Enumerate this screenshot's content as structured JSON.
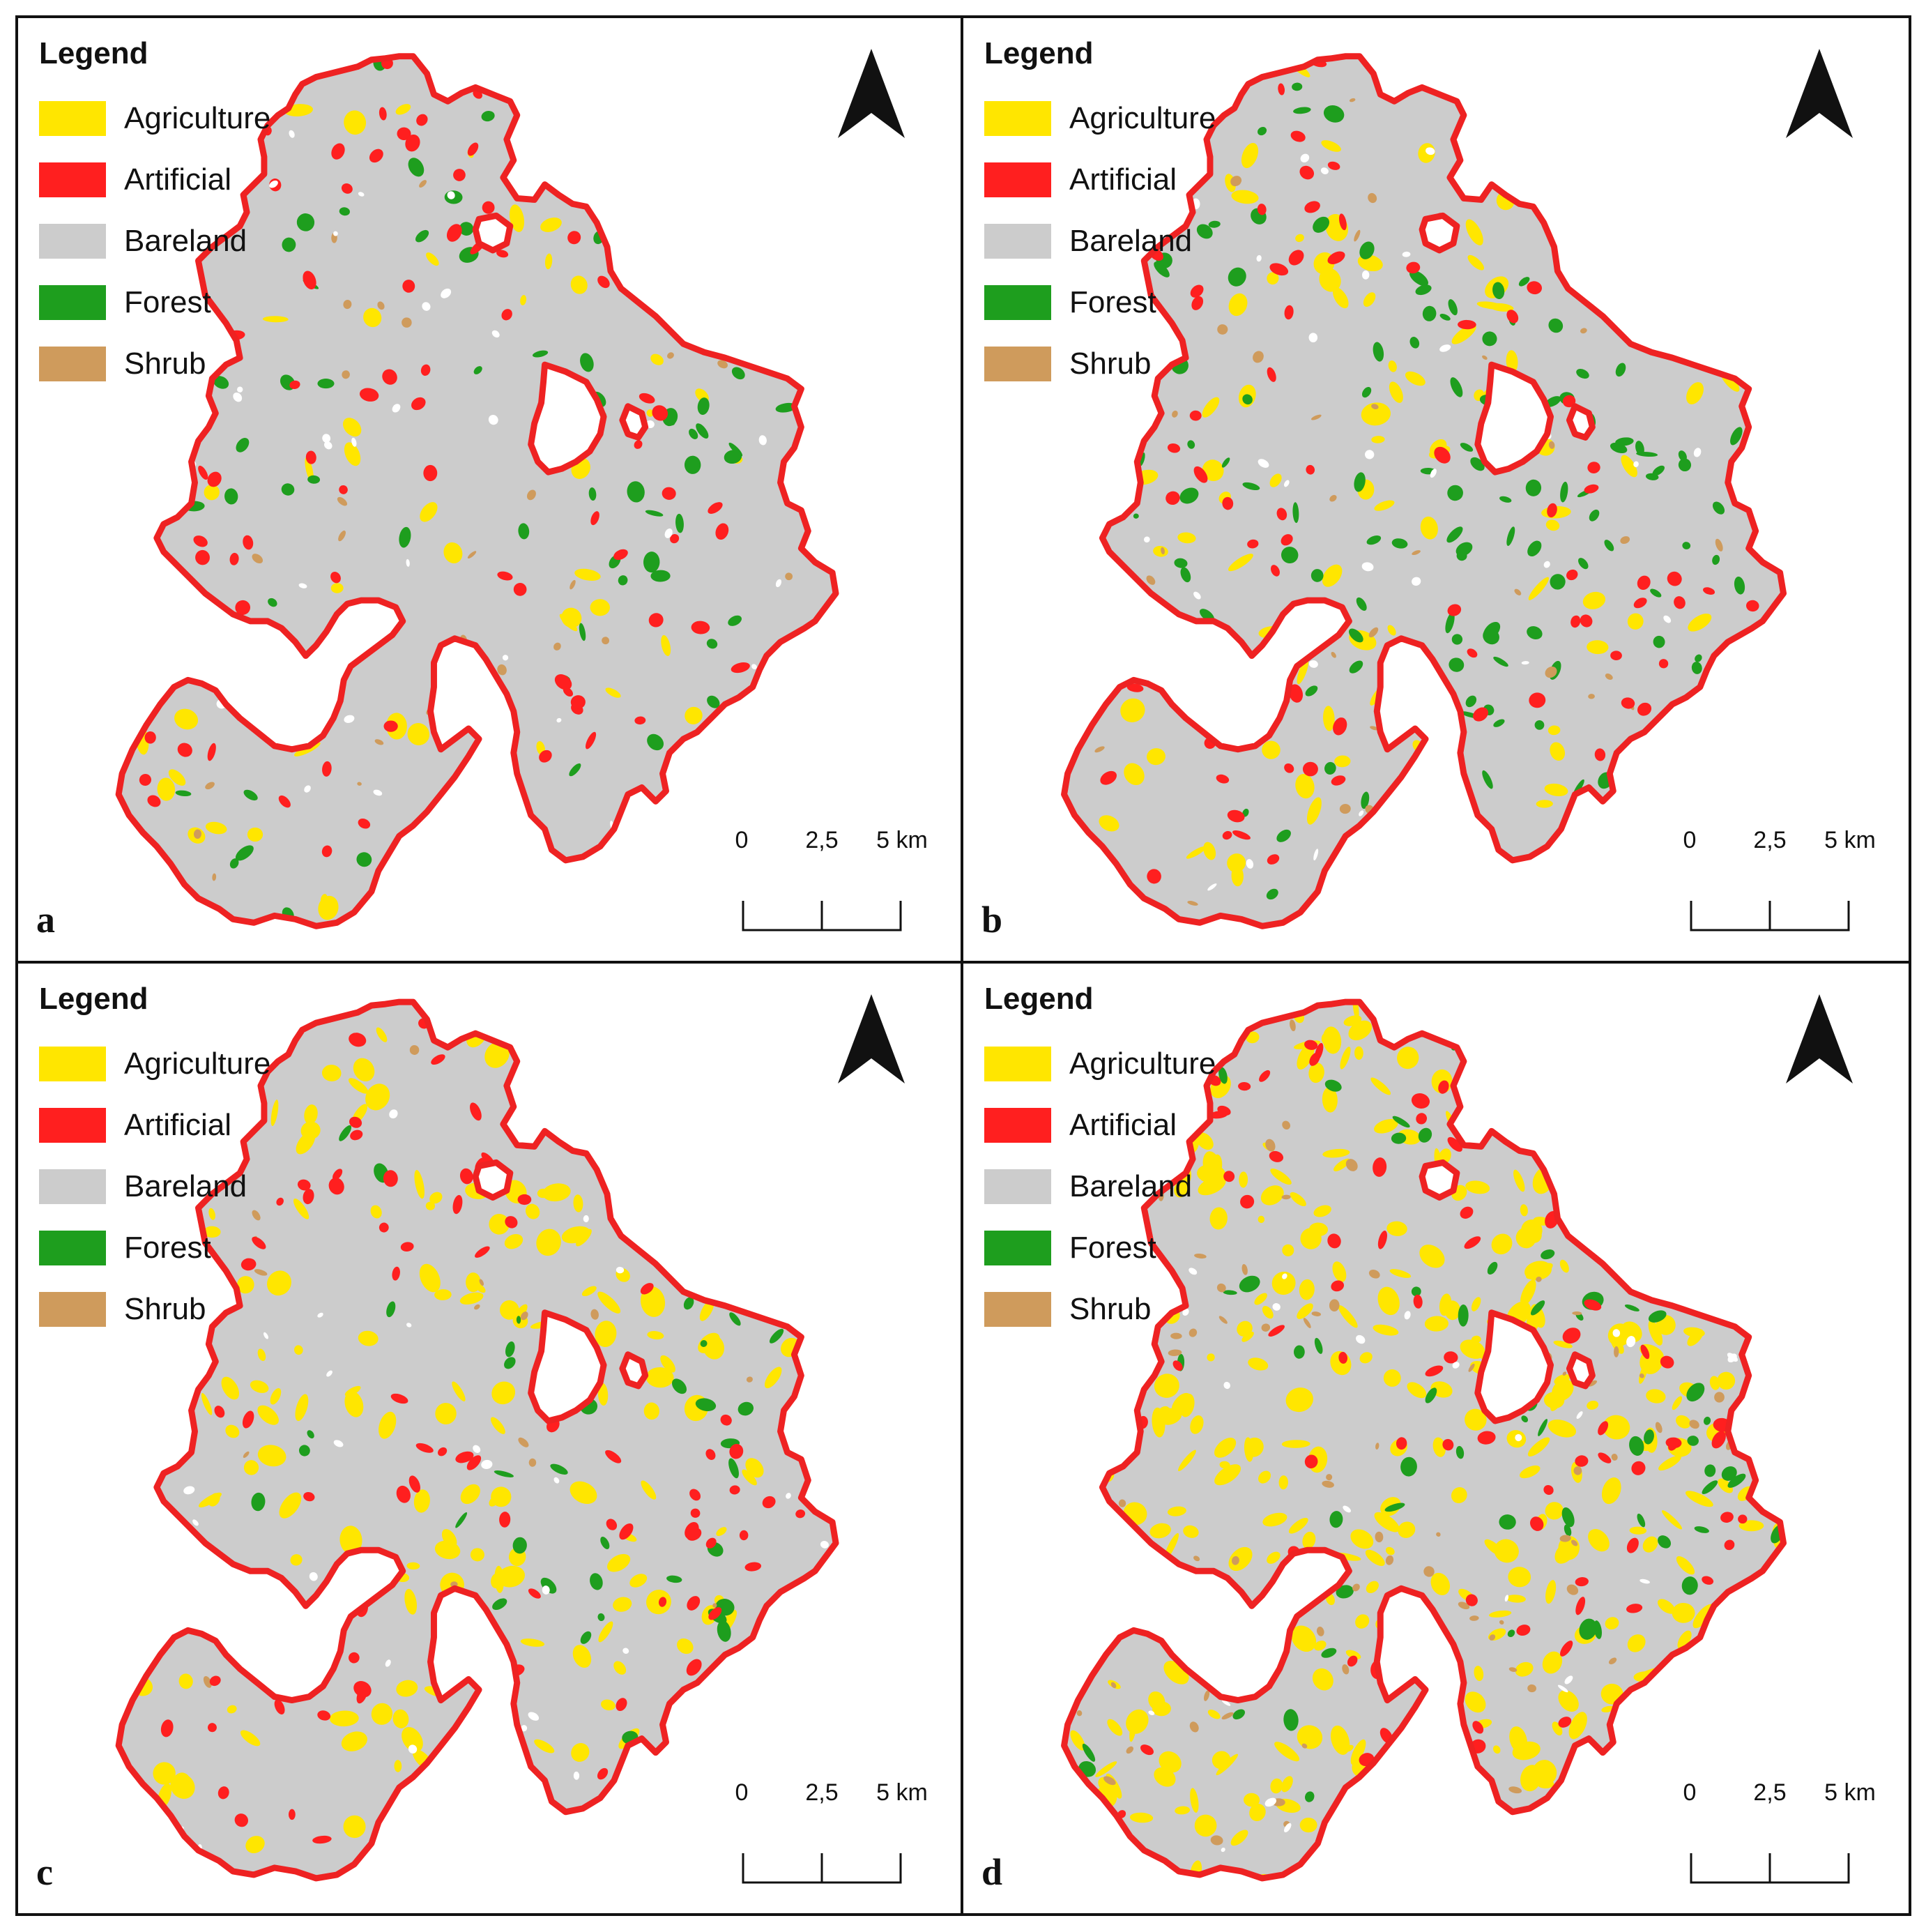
{
  "legend": {
    "title": "Legend",
    "items": [
      {
        "label": "Agriculture",
        "color": "#ffe600"
      },
      {
        "label": "Artificial",
        "color": "#ff1f1f"
      },
      {
        "label": "Bareland",
        "color": "#cccccc"
      },
      {
        "label": "Forest",
        "color": "#1e9e1e"
      },
      {
        "label": "Shrub",
        "color": "#cf9b5c"
      }
    ]
  },
  "scale_bar": {
    "labels": [
      "0",
      "2,5",
      "5 km"
    ]
  },
  "north_arrow": "north-arrow-icon",
  "boundary_color": "#ee2222",
  "panels": [
    {
      "letter": "a"
    },
    {
      "letter": "b"
    },
    {
      "letter": "c"
    },
    {
      "letter": "d"
    }
  ]
}
